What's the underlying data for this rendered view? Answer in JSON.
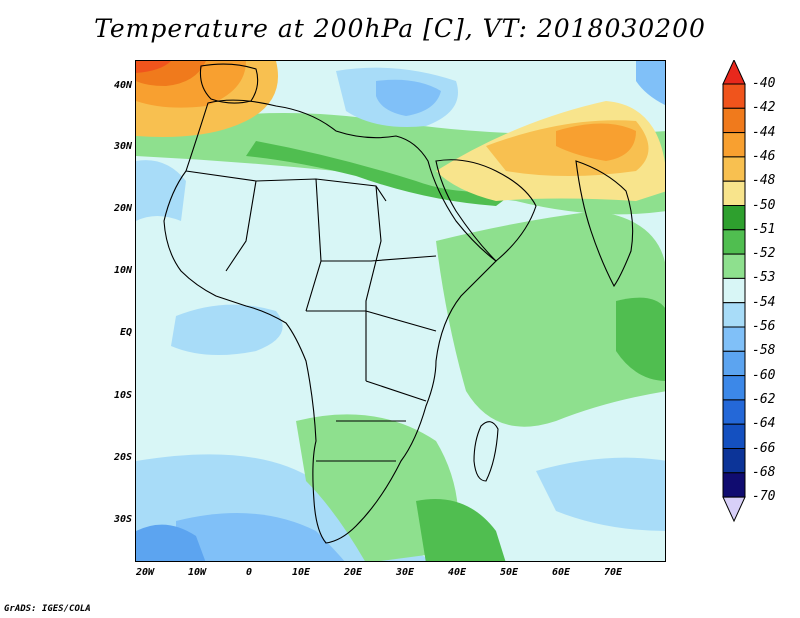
{
  "title": "Temperature at 200hPa [C], VT: 2018030200",
  "footer": "GrADS: IGES/COLA",
  "map": {
    "lat_labels": [
      "40N",
      "30N",
      "20N",
      "10N",
      "EQ",
      "10S",
      "20S",
      "30S"
    ],
    "lon_labels": [
      "20W",
      "10W",
      "0",
      "10E",
      "20E",
      "30E",
      "40E",
      "50E",
      "60E",
      "70E"
    ]
  },
  "colorbar": {
    "labels": [
      "-40",
      "-42",
      "-44",
      "-46",
      "-48",
      "-50",
      "-51",
      "-52",
      "-53",
      "-54",
      "-56",
      "-58",
      "-60",
      "-62",
      "-64",
      "-66",
      "-68",
      "-70"
    ],
    "colors": [
      "#e8281c",
      "#f0541c",
      "#f07a1c",
      "#f8a030",
      "#f8c050",
      "#f8e48c",
      "#2ea02e",
      "#50be50",
      "#8ee08e",
      "#d8f6f6",
      "#a8dcf8",
      "#80c0f8",
      "#5ca4f0",
      "#3c88e8",
      "#2468d8",
      "#1450c0",
      "#0c3498",
      "#100c70"
    ],
    "upper_arrow_color": "#e8281c",
    "lower_arrow_color": "#d8d0f8"
  }
}
